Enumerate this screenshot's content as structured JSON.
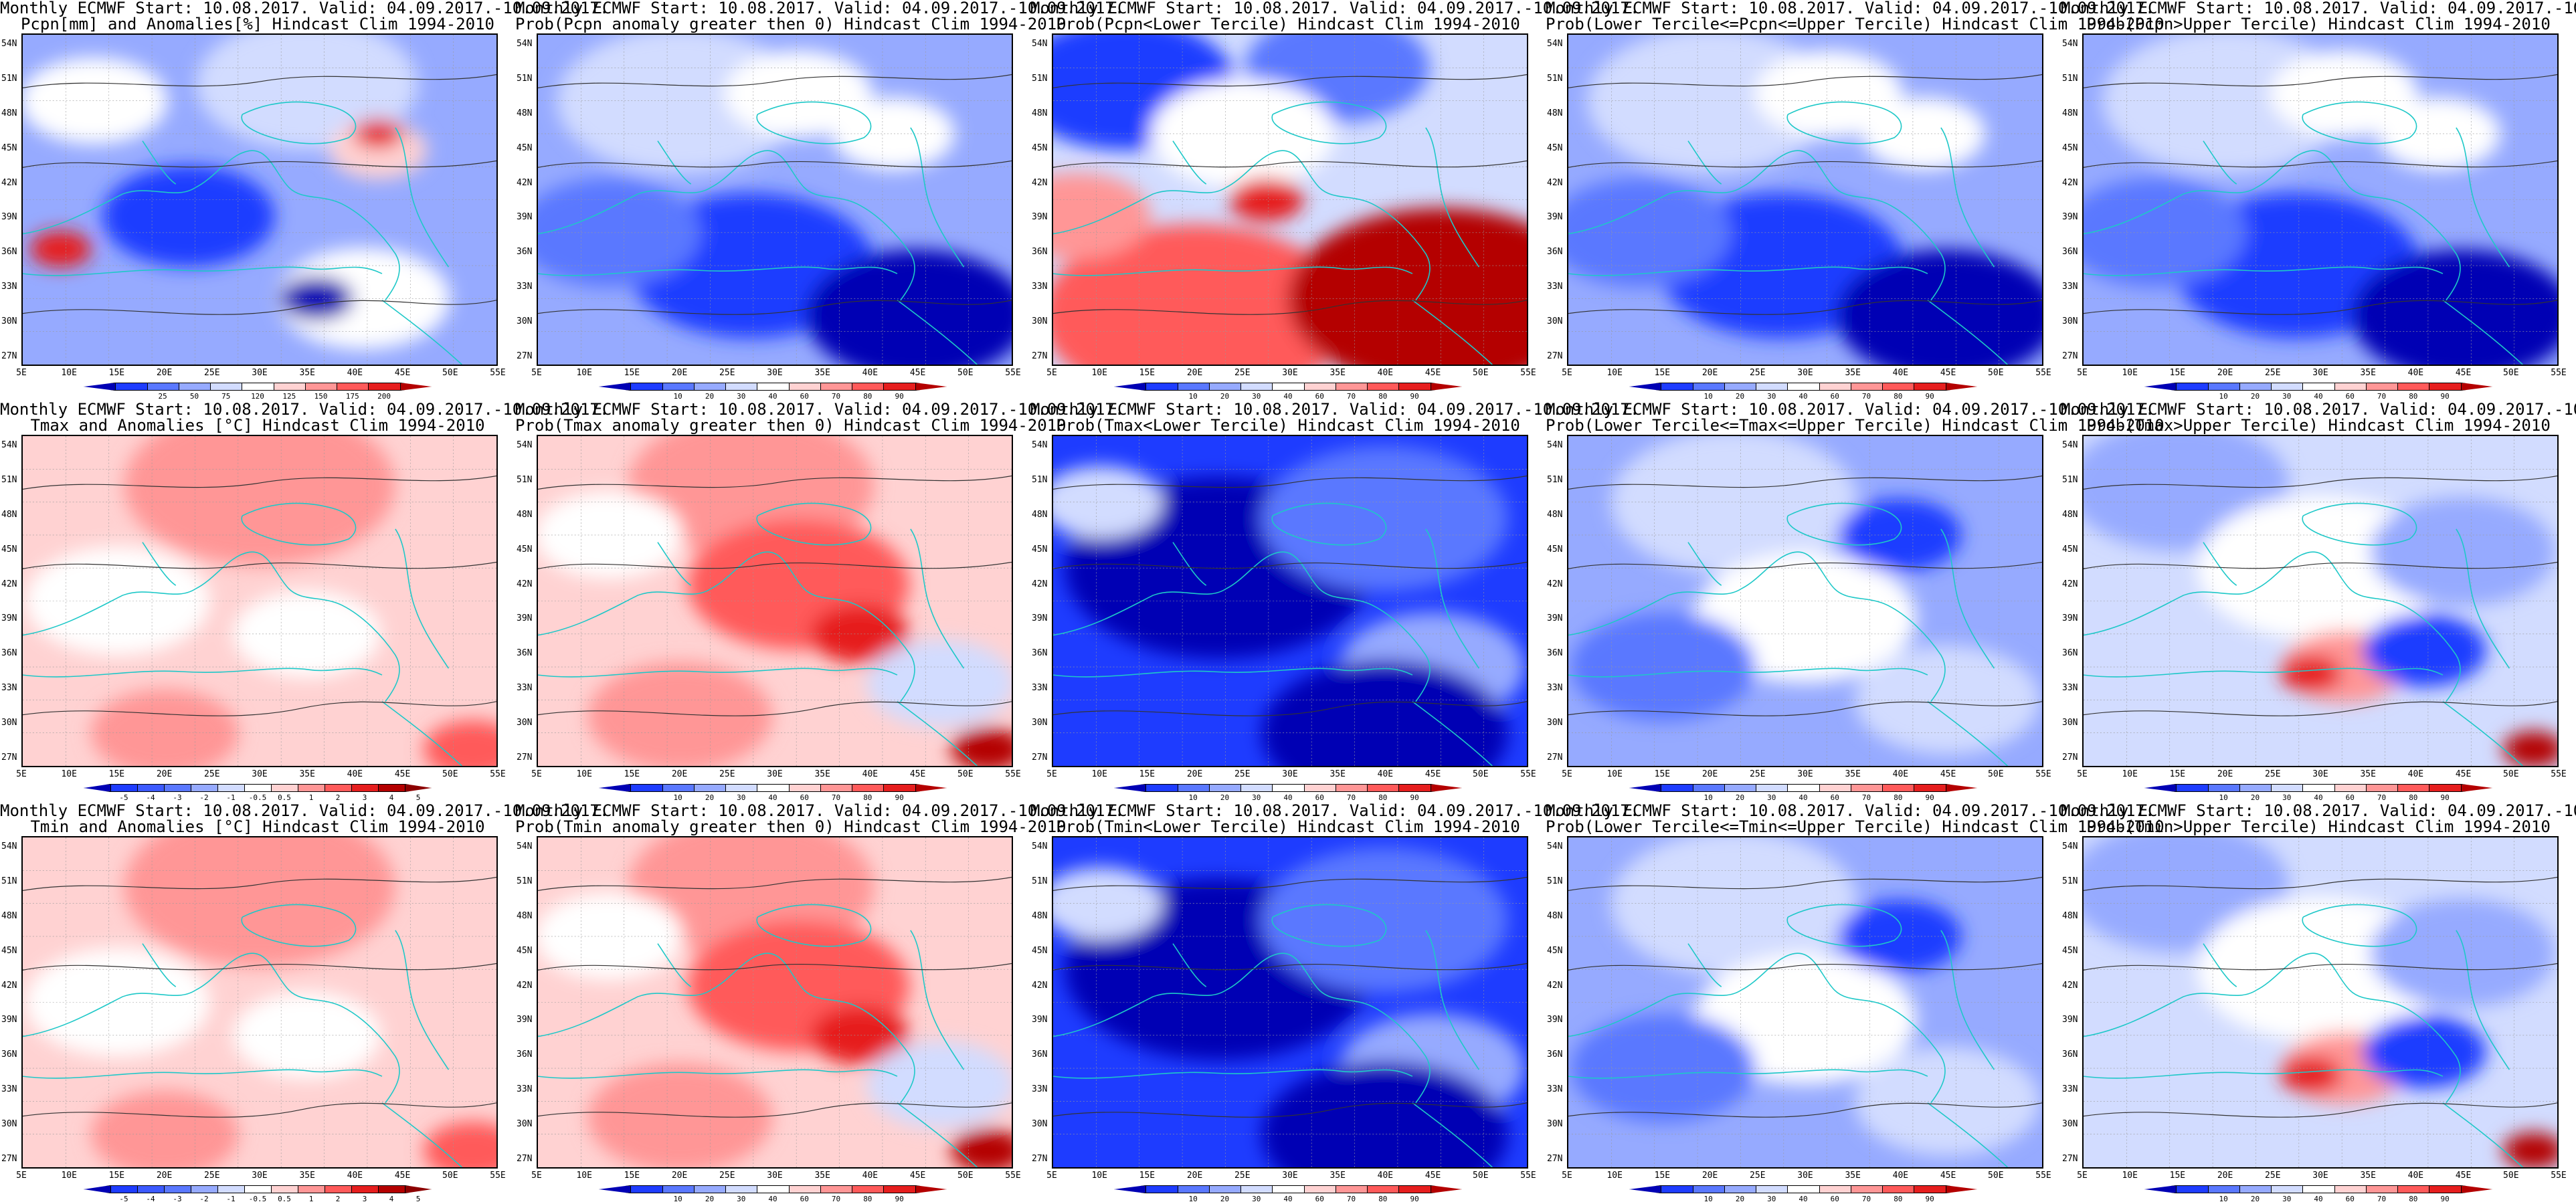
{
  "header": {
    "line1_row1": "Monthly ECMWF Start: 10.08.2017. Valid: 04.09.2017.-10.09.2017.",
    "line1_row2": "Monthly ECMWF Start: 10.08.2017. Valid: 04.09.2017.-10.09.2017.",
    "line1_row3": "Monthly ECMWF Start: 10.08.2017. Valid: 04.09.2017.-10.09.2017."
  },
  "axes": {
    "lat_labels": [
      "54N",
      "51N",
      "48N",
      "45N",
      "42N",
      "39N",
      "36N",
      "33N",
      "30N",
      "27N"
    ],
    "lon_labels": [
      "5E",
      "10E",
      "15E",
      "20E",
      "25E",
      "30E",
      "35E",
      "40E",
      "45E",
      "50E",
      "55E"
    ]
  },
  "colorbars": {
    "prob_ticks": [
      "10",
      "20",
      "30",
      "40",
      "60",
      "70",
      "80",
      "90"
    ],
    "prob_colors": [
      "#0000b4",
      "#1e3cff",
      "#5a78ff",
      "#96aaff",
      "#d2dcff",
      "#ffffff",
      "#ffd2d2",
      "#ff9696",
      "#ff5a5a",
      "#e61e1e",
      "#b40000"
    ],
    "pcpn_ticks": [
      "25",
      "50",
      "75",
      "120",
      "125",
      "150",
      "175",
      "200"
    ],
    "pcpn_colors": [
      "#0000b4",
      "#1e3cff",
      "#5a78ff",
      "#96aaff",
      "#d2dcff",
      "#ffffff",
      "#ffd2d2",
      "#ff9696",
      "#ff5a5a",
      "#e61e1e",
      "#b40000"
    ],
    "anom_ticks": [
      "-5",
      "-4",
      "-3",
      "-2",
      "-1",
      "-0.5",
      "0.5",
      "1",
      "2",
      "3",
      "4",
      "5"
    ],
    "anom_colors": [
      "#0000b4",
      "#1e3cff",
      "#3c5aff",
      "#5a78ff",
      "#96aaff",
      "#d2dcff",
      "#ffffff",
      "#ffd2d2",
      "#ff9696",
      "#ff5a5a",
      "#e61e1e",
      "#b40000",
      "#8c0000"
    ]
  },
  "panels": [
    {
      "row": 0,
      "col": 0,
      "title2": "Pcpn[mm] and Anomalies[%] Hindcast Clim 1994-2010",
      "bar": "pcpn",
      "theme": "pcpn_anom"
    },
    {
      "row": 0,
      "col": 1,
      "title2": "Prob(Pcpn anomaly greater then 0) Hindcast Clim 1994-2010",
      "bar": "prob",
      "theme": "blue"
    },
    {
      "row": 0,
      "col": 2,
      "title2": "Prob(Pcpn<Lower Tercile) Hindcast Clim 1994-2010",
      "bar": "prob",
      "theme": "red_south"
    },
    {
      "row": 0,
      "col": 3,
      "title2": "Prob(Lower Tercile<=Pcpn<=Upper Tercile) Hindcast Clim 1994-2010",
      "bar": "prob",
      "theme": "blue"
    },
    {
      "row": 0,
      "col": 4,
      "title2": "Prob(Pcpn>Upper Tercile) Hindcast Clim 1994-2010",
      "bar": "prob",
      "theme": "blue"
    },
    {
      "row": 1,
      "col": 0,
      "title2": "Tmax and Anomalies [°C] Hindcast Clim 1994-2010",
      "bar": "anom",
      "theme": "light_red"
    },
    {
      "row": 1,
      "col": 1,
      "title2": "Prob(Tmax anomaly greater then 0) Hindcast Clim 1994-2010",
      "bar": "prob",
      "theme": "red"
    },
    {
      "row": 1,
      "col": 2,
      "title2": "Prob(Tmax<Lower Tercile) Hindcast Clim 1994-2010",
      "bar": "prob",
      "theme": "deep_blue"
    },
    {
      "row": 1,
      "col": 3,
      "title2": "Prob(Lower Tercile<=Tmax<=Upper Tercile) Hindcast Clim 1994-2010",
      "bar": "prob",
      "theme": "blue_white"
    },
    {
      "row": 1,
      "col": 4,
      "title2": "Prob(Tmax>Upper Tercile) Hindcast Clim 1994-2010",
      "bar": "prob",
      "theme": "mixed"
    },
    {
      "row": 2,
      "col": 0,
      "title2": "Tmin and Anomalies [°C] Hindcast Clim 1994-2010",
      "bar": "anom",
      "theme": "light_red"
    },
    {
      "row": 2,
      "col": 1,
      "title2": "Prob(Tmin anomaly greater then 0) Hindcast Clim 1994-2010",
      "bar": "prob",
      "theme": "red"
    },
    {
      "row": 2,
      "col": 2,
      "title2": "Prob(Tmin<Lower Tercile) Hindcast Clim 1994-2010",
      "bar": "prob",
      "theme": "deep_blue"
    },
    {
      "row": 2,
      "col": 3,
      "title2": "Prob(Lower Tercile<=Tmin<=Upper Tercile) Hindcast Clim 1994-2010",
      "bar": "prob",
      "theme": "blue_white"
    },
    {
      "row": 2,
      "col": 4,
      "title2": "Prob(Tmin>Upper Tercile) Hindcast Clim 1994-2010",
      "bar": "prob",
      "theme": "mixed"
    }
  ],
  "themes": {
    "pcpn_anom": {
      "bg": "#96aaff",
      "blobs": [
        [
          "#ffffff",
          0.15,
          0.2,
          0.12
        ],
        [
          "#d2dcff",
          0.6,
          0.15,
          0.18
        ],
        [
          "#1e3cff",
          0.35,
          0.55,
          0.14
        ],
        [
          "#ffd2d2",
          0.75,
          0.35,
          0.08
        ],
        [
          "#e61e1e",
          0.75,
          0.3,
          0.04
        ],
        [
          "#ffffff",
          0.72,
          0.8,
          0.14
        ],
        [
          "#0000b4",
          0.62,
          0.8,
          0.06
        ],
        [
          "#e61e1e",
          0.08,
          0.65,
          0.05
        ]
      ]
    },
    "blue": {
      "bg": "#96aaff",
      "blobs": [
        [
          "#d2dcff",
          0.3,
          0.2,
          0.2
        ],
        [
          "#ffffff",
          0.55,
          0.18,
          0.12
        ],
        [
          "#1e3cff",
          0.45,
          0.7,
          0.2
        ],
        [
          "#0000b4",
          0.8,
          0.85,
          0.18
        ],
        [
          "#5a78ff",
          0.15,
          0.6,
          0.15
        ],
        [
          "#ffffff",
          0.75,
          0.3,
          0.1
        ]
      ]
    },
    "red_south": {
      "bg": "#d2dcff",
      "blobs": [
        [
          "#1e3cff",
          0.15,
          0.15,
          0.18
        ],
        [
          "#5a78ff",
          0.6,
          0.1,
          0.15
        ],
        [
          "#ffffff",
          0.4,
          0.3,
          0.15
        ],
        [
          "#ff5a5a",
          0.3,
          0.85,
          0.25
        ],
        [
          "#b40000",
          0.82,
          0.8,
          0.25
        ],
        [
          "#ff9696",
          0.05,
          0.55,
          0.12
        ],
        [
          "#e61e1e",
          0.45,
          0.5,
          0.06
        ]
      ]
    },
    "deep_blue": {
      "bg": "#1e3cff",
      "blobs": [
        [
          "#0000b4",
          0.35,
          0.4,
          0.25
        ],
        [
          "#5a78ff",
          0.7,
          0.25,
          0.2
        ],
        [
          "#96aaff",
          0.8,
          0.7,
          0.15
        ],
        [
          "#d2dcff",
          0.1,
          0.2,
          0.1
        ],
        [
          "#0000b4",
          0.7,
          0.9,
          0.2
        ]
      ]
    },
    "blue_white": {
      "bg": "#96aaff",
      "blobs": [
        [
          "#d2dcff",
          0.35,
          0.2,
          0.2
        ],
        [
          "#ffffff",
          0.5,
          0.55,
          0.18
        ],
        [
          "#5a78ff",
          0.2,
          0.7,
          0.15
        ],
        [
          "#1e3cff",
          0.7,
          0.3,
          0.1
        ],
        [
          "#d2dcff",
          0.8,
          0.8,
          0.15
        ]
      ]
    },
    "red": {
      "bg": "#ffd2d2",
      "blobs": [
        [
          "#ff9696",
          0.45,
          0.15,
          0.2
        ],
        [
          "#ff5a5a",
          0.55,
          0.45,
          0.18
        ],
        [
          "#e61e1e",
          0.68,
          0.6,
          0.08
        ],
        [
          "#ffffff",
          0.15,
          0.3,
          0.12
        ],
        [
          "#d2dcff",
          0.85,
          0.75,
          0.12
        ],
        [
          "#b40000",
          0.95,
          0.95,
          0.06
        ],
        [
          "#ff9696",
          0.3,
          0.85,
          0.15
        ]
      ]
    },
    "light_red": {
      "bg": "#ffd2d2",
      "blobs": [
        [
          "#ff9696",
          0.5,
          0.15,
          0.22
        ],
        [
          "#ffffff",
          0.2,
          0.5,
          0.15
        ],
        [
          "#ff9696",
          0.3,
          0.9,
          0.12
        ],
        [
          "#ffffff",
          0.6,
          0.6,
          0.12
        ],
        [
          "#ff5a5a",
          0.95,
          0.95,
          0.08
        ]
      ]
    },
    "mixed": {
      "bg": "#d2dcff",
      "blobs": [
        [
          "#96aaff",
          0.2,
          0.15,
          0.18
        ],
        [
          "#ffffff",
          0.5,
          0.4,
          0.2
        ],
        [
          "#ff9696",
          0.55,
          0.7,
          0.1
        ],
        [
          "#e61e1e",
          0.48,
          0.72,
          0.05
        ],
        [
          "#1e3cff",
          0.72,
          0.65,
          0.1
        ],
        [
          "#96aaff",
          0.8,
          0.35,
          0.15
        ],
        [
          "#b40000",
          0.95,
          0.95,
          0.05
        ]
      ]
    }
  }
}
